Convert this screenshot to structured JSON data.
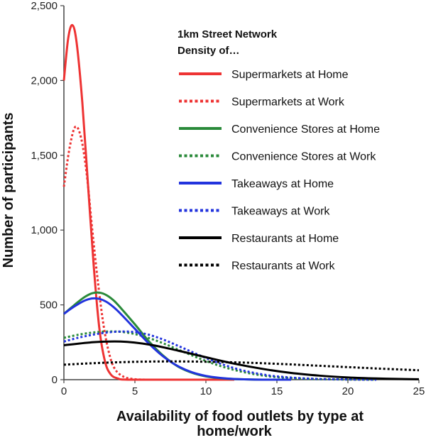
{
  "chart_data": {
    "type": "line",
    "title": "",
    "xlabel_line1": "Availability of food outlets by type at",
    "xlabel_line2": "home/work",
    "ylabel": "Number of participants",
    "xlim": [
      0,
      25
    ],
    "ylim": [
      0,
      2500
    ],
    "x_ticks": [
      0,
      5,
      10,
      15,
      20,
      25
    ],
    "y_ticks": [
      0,
      500,
      1000,
      1500,
      2000,
      2500
    ],
    "y_tick_labels": [
      "0",
      "500",
      "1,000",
      "1,500",
      "2,000",
      "2,500"
    ],
    "grid": false,
    "legend": {
      "title_line1": "1km Street Network",
      "title_line2": "Density of…",
      "placement": "top-right"
    },
    "series": [
      {
        "name": "Supermarkets at Home",
        "color": "#ee3333",
        "style": "solid",
        "points": [
          [
            0,
            2000
          ],
          [
            0.3,
            2280
          ],
          [
            0.6,
            2370
          ],
          [
            0.9,
            2250
          ],
          [
            1.3,
            1850
          ],
          [
            1.7,
            1300
          ],
          [
            2.1,
            760
          ],
          [
            2.5,
            340
          ],
          [
            2.9,
            120
          ],
          [
            3.3,
            35
          ],
          [
            3.8,
            8
          ],
          [
            4.5,
            0
          ],
          [
            8,
            0
          ],
          [
            12,
            0
          ]
        ]
      },
      {
        "name": "Supermarkets at Work",
        "color": "#ee3333",
        "style": "dotted",
        "points": [
          [
            0,
            1290
          ],
          [
            0.4,
            1550
          ],
          [
            0.8,
            1690
          ],
          [
            1.2,
            1620
          ],
          [
            1.6,
            1380
          ],
          [
            2,
            1000
          ],
          [
            2.4,
            650
          ],
          [
            2.8,
            360
          ],
          [
            3.2,
            170
          ],
          [
            3.6,
            70
          ],
          [
            4.2,
            20
          ],
          [
            5,
            3
          ],
          [
            6,
            0
          ],
          [
            8,
            0
          ]
        ]
      },
      {
        "name": "Convenience Stores at Home",
        "color": "#2a8a3a",
        "style": "solid",
        "points": [
          [
            0,
            440
          ],
          [
            0.5,
            480
          ],
          [
            1,
            520
          ],
          [
            1.5,
            555
          ],
          [
            2,
            578
          ],
          [
            2.5,
            582
          ],
          [
            3,
            565
          ],
          [
            3.5,
            530
          ],
          [
            4,
            480
          ],
          [
            5,
            370
          ],
          [
            6,
            255
          ],
          [
            7,
            160
          ],
          [
            8,
            90
          ],
          [
            9,
            47
          ],
          [
            10,
            22
          ],
          [
            11,
            10
          ],
          [
            12,
            4
          ],
          [
            14,
            0
          ],
          [
            16,
            0
          ]
        ]
      },
      {
        "name": "Convenience Stores at Work",
        "color": "#2a8a3a",
        "style": "dotted",
        "points": [
          [
            0,
            280
          ],
          [
            1,
            300
          ],
          [
            2,
            315
          ],
          [
            3,
            322
          ],
          [
            4,
            320
          ],
          [
            5,
            305
          ],
          [
            6,
            278
          ],
          [
            7,
            243
          ],
          [
            8,
            203
          ],
          [
            9,
            163
          ],
          [
            10,
            125
          ],
          [
            11,
            92
          ],
          [
            12,
            65
          ],
          [
            13,
            44
          ],
          [
            14,
            28
          ],
          [
            15,
            17
          ],
          [
            17,
            6
          ],
          [
            19,
            2
          ],
          [
            22,
            0
          ]
        ]
      },
      {
        "name": "Takeaways at Home",
        "color": "#2233dd",
        "style": "solid",
        "points": [
          [
            0,
            440
          ],
          [
            0.5,
            475
          ],
          [
            1,
            505
          ],
          [
            1.5,
            530
          ],
          [
            2,
            543
          ],
          [
            2.5,
            540
          ],
          [
            3,
            520
          ],
          [
            3.5,
            485
          ],
          [
            4,
            440
          ],
          [
            5,
            340
          ],
          [
            6,
            240
          ],
          [
            7,
            155
          ],
          [
            8,
            92
          ],
          [
            9,
            50
          ],
          [
            10,
            25
          ],
          [
            11,
            12
          ],
          [
            12,
            5
          ],
          [
            14,
            0
          ],
          [
            16,
            0
          ]
        ]
      },
      {
        "name": "Takeaways at Work",
        "color": "#2233dd",
        "style": "dotted",
        "points": [
          [
            0,
            255
          ],
          [
            1,
            280
          ],
          [
            2,
            300
          ],
          [
            3,
            315
          ],
          [
            4,
            322
          ],
          [
            5,
            318
          ],
          [
            6,
            300
          ],
          [
            7,
            268
          ],
          [
            8,
            228
          ],
          [
            9,
            186
          ],
          [
            10,
            145
          ],
          [
            11,
            108
          ],
          [
            12,
            77
          ],
          [
            13,
            53
          ],
          [
            14,
            35
          ],
          [
            15,
            22
          ],
          [
            17,
            8
          ],
          [
            19,
            3
          ],
          [
            22,
            0
          ]
        ]
      },
      {
        "name": "Restaurants at Home",
        "color": "#000000",
        "style": "solid",
        "points": [
          [
            0,
            230
          ],
          [
            2,
            250
          ],
          [
            4,
            255
          ],
          [
            6,
            235
          ],
          [
            8,
            195
          ],
          [
            10,
            150
          ],
          [
            12,
            107
          ],
          [
            14,
            72
          ],
          [
            16,
            45
          ],
          [
            18,
            27
          ],
          [
            20,
            15
          ],
          [
            22,
            8
          ],
          [
            24,
            4
          ],
          [
            25,
            3
          ]
        ]
      },
      {
        "name": "Restaurants at Work",
        "color": "#000000",
        "style": "dotted",
        "points": [
          [
            0,
            100
          ],
          [
            2,
            110
          ],
          [
            4,
            117
          ],
          [
            6,
            121
          ],
          [
            8,
            122
          ],
          [
            10,
            120
          ],
          [
            12,
            116
          ],
          [
            14,
            110
          ],
          [
            16,
            102
          ],
          [
            18,
            93
          ],
          [
            20,
            84
          ],
          [
            22,
            75
          ],
          [
            24,
            67
          ],
          [
            25,
            63
          ]
        ]
      }
    ]
  }
}
